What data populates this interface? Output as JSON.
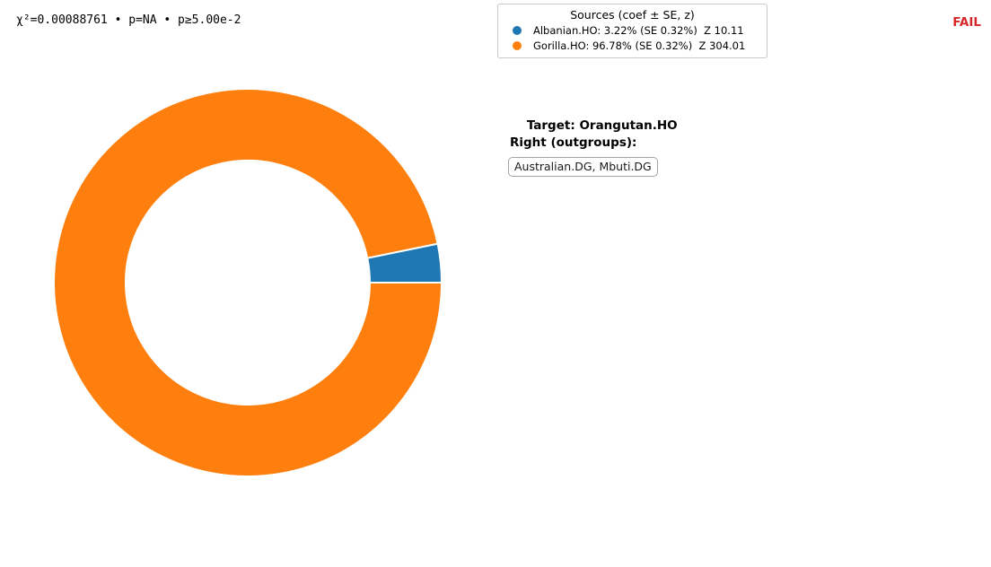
{
  "header": {
    "stats_text": "χ²=0.00088761 • p=NA • p≥5.00e-2",
    "stats": {
      "chi2": "0.00088761",
      "p": "NA",
      "p_threshold": "5.00e-2"
    },
    "status": "FAIL",
    "status_color": "#d62728"
  },
  "legend": {
    "title": "Sources (coef ± SE, z)"
  },
  "info_panel": {
    "target_label": "Target:",
    "target_value": "Orangutan.HO",
    "right_label": "Right (outgroups):",
    "outgroups_value": "Australian.DG, Mbuti.DG"
  },
  "chart_data": {
    "type": "pie",
    "subtype": "donut",
    "legend_title": "Sources (coef ± SE, z)",
    "legend_position": "top-center",
    "start_angle_deg": 0,
    "direction": "counterclockwise",
    "outer_radius_px": 216,
    "inner_radius_px": 136,
    "edge_color": "#ffffff",
    "edge_width": 2,
    "slices": [
      {
        "label": "Albanian.HO",
        "value": 3.22,
        "unit": "%",
        "se": 0.32,
        "z": 10.11,
        "color": "#1f77b4",
        "legend_label": "Albanian.HO: 3.22% (SE 0.32%)  Z 10.11"
      },
      {
        "label": "Gorilla.HO",
        "value": 96.78,
        "unit": "%",
        "se": 0.32,
        "z": 304.01,
        "color": "#ff7f0e",
        "legend_label": "Gorilla.HO: 96.78% (SE 0.32%)  Z 304.01"
      }
    ]
  }
}
